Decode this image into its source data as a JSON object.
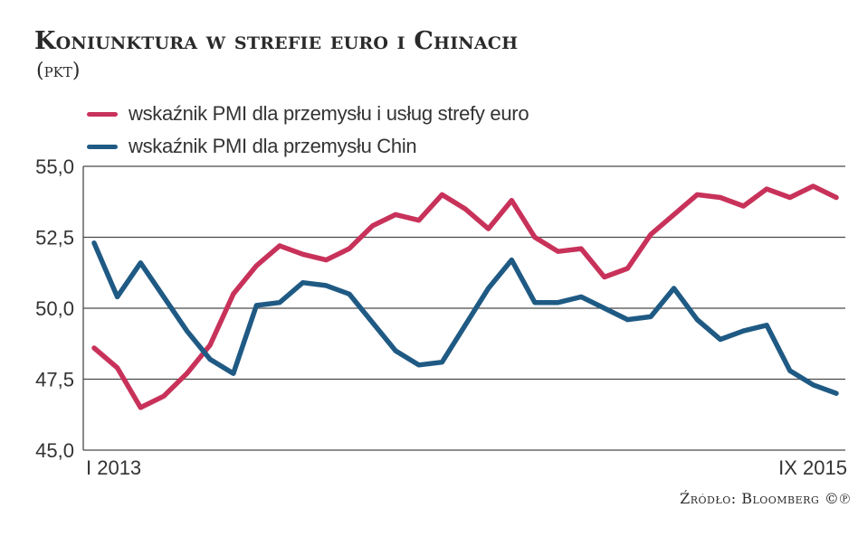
{
  "title": "Koniunktura w strefie euro i Chinach",
  "unit": "(pkt)",
  "legend": [
    {
      "label": "wskaźnik PMI dla przemysłu i usług strefy euro",
      "color": "#c8325a"
    },
    {
      "label": "wskaźnik PMI dla przemysłu Chin",
      "color": "#1f5a84"
    }
  ],
  "source": "Źródło: Bloomberg ©℗",
  "chart_data": {
    "type": "line",
    "title": "Koniunktura w strefie euro i Chinach",
    "ylabel": "(pkt)",
    "ylim": [
      45.0,
      55.0
    ],
    "y_ticks": [
      55.0,
      52.5,
      50.0,
      47.5,
      45.0
    ],
    "y_tick_labels": [
      "55,0",
      "52,5",
      "50,0",
      "47,5",
      "45,0"
    ],
    "x_start_label": "I 2013",
    "x_end_label": "IX 2015",
    "x": [
      "I 2013",
      "II 2013",
      "III 2013",
      "IV 2013",
      "V 2013",
      "VI 2013",
      "VII 2013",
      "VIII 2013",
      "IX 2013",
      "X 2013",
      "XI 2013",
      "XII 2013",
      "I 2014",
      "II 2014",
      "III 2014",
      "IV 2014",
      "V 2014",
      "VI 2014",
      "VII 2014",
      "VIII 2014",
      "IX 2014",
      "X 2014",
      "XI 2014",
      "XII 2014",
      "I 2015",
      "II 2015",
      "III 2015",
      "IV 2015",
      "V 2015",
      "VI 2015",
      "VII 2015",
      "VIII 2015",
      "IX 2015"
    ],
    "series": [
      {
        "name": "wskaźnik PMI dla przemysłu i usług strefy euro",
        "color": "#c8325a",
        "values": [
          48.6,
          47.9,
          46.5,
          46.9,
          47.7,
          48.7,
          50.5,
          51.5,
          52.2,
          51.9,
          51.7,
          52.1,
          52.9,
          53.3,
          53.1,
          54.0,
          53.5,
          52.8,
          53.8,
          52.5,
          52.0,
          52.1,
          51.1,
          51.4,
          52.6,
          53.3,
          54.0,
          53.9,
          53.6,
          54.2,
          53.9,
          54.3,
          53.9
        ]
      },
      {
        "name": "wskaźnik PMI dla przemysłu Chin",
        "color": "#1f5a84",
        "values": [
          52.3,
          50.4,
          51.6,
          50.4,
          49.2,
          48.2,
          47.7,
          50.1,
          50.2,
          50.9,
          50.8,
          50.5,
          49.5,
          48.5,
          48.0,
          48.1,
          49.4,
          50.7,
          51.7,
          50.2,
          50.2,
          50.4,
          50.0,
          49.6,
          49.7,
          50.7,
          49.6,
          48.9,
          49.2,
          49.4,
          47.8,
          47.3,
          47.0
        ]
      }
    ]
  }
}
